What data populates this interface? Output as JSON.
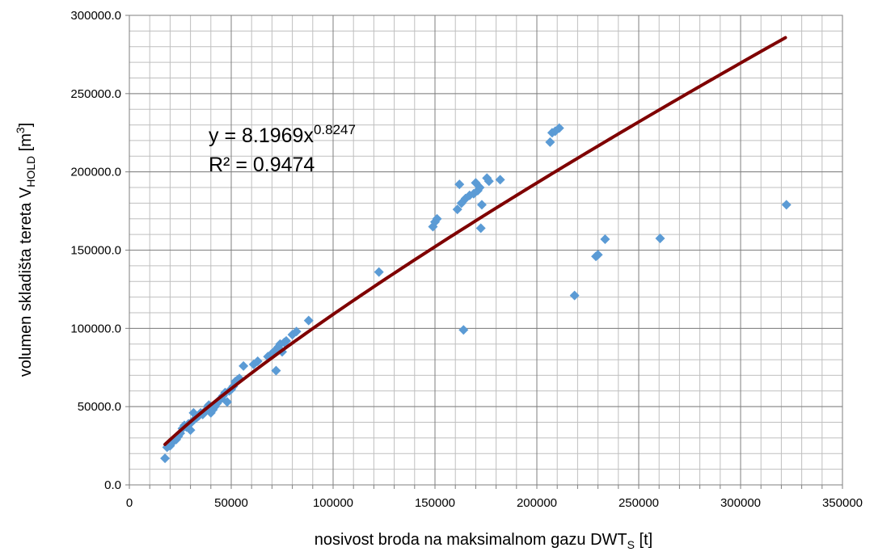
{
  "chart_data": {
    "type": "scatter",
    "xlabel": {
      "main": "nosivost broda na maksimalnom gazu DWT",
      "sub": "S",
      "tail": " [t]"
    },
    "ylabel": {
      "main": "volumen skladišta tereta V",
      "sub": "HOLD",
      "mid": " [m",
      "sup": "3",
      "tail": "]"
    },
    "xlim": [
      0,
      350000
    ],
    "ylim": [
      0,
      300000
    ],
    "xticks": [
      0,
      50000,
      100000,
      150000,
      200000,
      250000,
      300000,
      350000
    ],
    "xtick_labels": [
      "0",
      "50000",
      "100000",
      "150000",
      "200000",
      "250000",
      "300000",
      "350000"
    ],
    "yticks": [
      0,
      50000,
      100000,
      150000,
      200000,
      250000,
      300000
    ],
    "ytick_labels": [
      "0.0",
      "50000.0",
      "100000.0",
      "150000.0",
      "200000.0",
      "250000.0",
      "300000.0"
    ],
    "grid": true,
    "legend": "none",
    "marker_color": "#5b9bd5",
    "trendline_color": "#7f0000",
    "equation": {
      "prefix": "y = 8.1969x",
      "exponent": "0.8247"
    },
    "r_squared": "R² = 0.9474",
    "trendline": {
      "type": "power",
      "a": 8.1969,
      "b": 0.8247,
      "x_from": 17500,
      "x_to": 322000
    },
    "points": [
      [
        17500,
        17000
      ],
      [
        18500,
        24000
      ],
      [
        20000,
        25000
      ],
      [
        21000,
        27000
      ],
      [
        23000,
        29000
      ],
      [
        24000,
        31000
      ],
      [
        25000,
        33000
      ],
      [
        26000,
        36000
      ],
      [
        27000,
        38000
      ],
      [
        28000,
        37000
      ],
      [
        29000,
        39000
      ],
      [
        30000,
        35000
      ],
      [
        30500,
        40000
      ],
      [
        31500,
        46000
      ],
      [
        32000,
        42000
      ],
      [
        33000,
        43000
      ],
      [
        34000,
        44000
      ],
      [
        35000,
        46000
      ],
      [
        36000,
        45000
      ],
      [
        37000,
        47000
      ],
      [
        38000,
        48000
      ],
      [
        38500,
        50000
      ],
      [
        39000,
        51000
      ],
      [
        40000,
        46000
      ],
      [
        41000,
        48000
      ],
      [
        42000,
        50000
      ],
      [
        43000,
        52000
      ],
      [
        44000,
        54000
      ],
      [
        45000,
        55000
      ],
      [
        46000,
        57000
      ],
      [
        47000,
        59000
      ],
      [
        48000,
        53000
      ],
      [
        49000,
        60000
      ],
      [
        50000,
        61000
      ],
      [
        51000,
        63000
      ],
      [
        52000,
        66000
      ],
      [
        53000,
        67000
      ],
      [
        54000,
        68000
      ],
      [
        56000,
        76000
      ],
      [
        61000,
        77000
      ],
      [
        63000,
        79000
      ],
      [
        68000,
        82000
      ],
      [
        70000,
        84000
      ],
      [
        71000,
        85000
      ],
      [
        72000,
        73000
      ],
      [
        72500,
        87000
      ],
      [
        73000,
        88000
      ],
      [
        74000,
        90000
      ],
      [
        75000,
        85000
      ],
      [
        76000,
        91000
      ],
      [
        77000,
        92000
      ],
      [
        80000,
        96000
      ],
      [
        82000,
        98000
      ],
      [
        88000,
        105000
      ],
      [
        122500,
        136000
      ],
      [
        149000,
        165000
      ],
      [
        150000,
        168000
      ],
      [
        151000,
        170000
      ],
      [
        161000,
        176000
      ],
      [
        162000,
        192000
      ],
      [
        163000,
        180000
      ],
      [
        164000,
        99000
      ],
      [
        165000,
        183000
      ],
      [
        167000,
        185000
      ],
      [
        169000,
        186000
      ],
      [
        170000,
        193000
      ],
      [
        171000,
        188000
      ],
      [
        172000,
        190000
      ],
      [
        172500,
        164000
      ],
      [
        173000,
        179000
      ],
      [
        175500,
        196000
      ],
      [
        176500,
        194000
      ],
      [
        182000,
        195000
      ],
      [
        206500,
        219000
      ],
      [
        207500,
        225000
      ],
      [
        209000,
        226000
      ],
      [
        211000,
        228000
      ],
      [
        218500,
        121000
      ],
      [
        229000,
        146000
      ],
      [
        230000,
        147000
      ],
      [
        233500,
        157000
      ],
      [
        260500,
        157500
      ],
      [
        322500,
        179000
      ]
    ]
  }
}
